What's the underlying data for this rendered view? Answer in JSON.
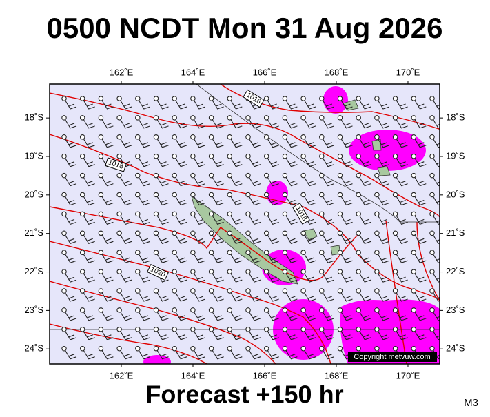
{
  "title": "0500 NCDT Mon 31 Aug 2026",
  "map": {
    "lon_range": [
      160,
      170.885
    ],
    "lat_range": [
      17.12,
      24.39
    ],
    "lon_ticks": [
      {
        "value": 162,
        "label": "162˚E"
      },
      {
        "value": 164,
        "label": "164˚E"
      },
      {
        "value": 166,
        "label": "166˚E"
      },
      {
        "value": 168,
        "label": "168˚E"
      },
      {
        "value": 170,
        "label": "170˚E"
      }
    ],
    "lat_ticks": [
      {
        "value": 18,
        "label": "18˚S"
      },
      {
        "value": 19,
        "label": "19˚S"
      },
      {
        "value": 20,
        "label": "20˚S"
      },
      {
        "value": 21,
        "label": "21˚S"
      },
      {
        "value": 22,
        "label": "22˚S"
      },
      {
        "value": 23,
        "label": "23˚S"
      },
      {
        "value": 24,
        "label": "24˚S"
      }
    ],
    "contour_labels": [
      "1016",
      "1018",
      "1018",
      "1020"
    ],
    "copyright": "Copyright metvuw.com"
  },
  "footer": "Forecast +150 hr",
  "code": "M3"
}
